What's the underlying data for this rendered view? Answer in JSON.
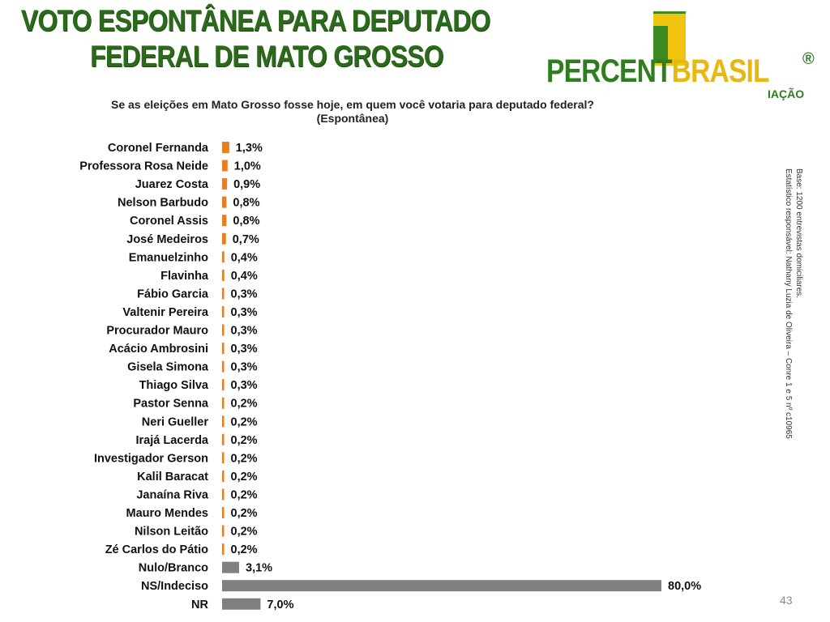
{
  "header": {
    "title_line1": "VOTO ESPONTÂNEA PARA DEPUTADO",
    "title_line2": "FEDERAL DE MATO GROSSO"
  },
  "logo": {
    "word_part1": "PERCENT",
    "word_part2": "BRASIL",
    "reg": "®",
    "sub": "IAÇÃO"
  },
  "question": {
    "line1": "Se as eleições em Mato Grosso fosse hoje, em quem você votaria para deputado federal?",
    "line2": "(Espontânea)"
  },
  "side_note": {
    "line1": "Base: 1200 entrevistas domiciliares.",
    "line2": "Estatístico responsável: Nathany Luzia de Oliveira – Conre 1 e 5 nº c10965"
  },
  "page_number": "43",
  "chart_data": {
    "type": "bar",
    "orientation": "horizontal",
    "categories": [
      "Coronel Fernanda",
      "Professora Rosa Neide",
      "Juarez Costa",
      "Nelson Barbudo",
      "Coronel Assis",
      "José Medeiros",
      "Emanuelzinho",
      "Flavinha",
      "Fábio Garcia",
      "Valtenir Pereira",
      "Procurador Mauro",
      "Acácio Ambrosini",
      "Gisela Simona",
      "Thiago Silva",
      "Pastor Senna",
      "Neri Gueller",
      "Irajá Lacerda",
      "Investigador Gerson",
      "Kalil Baracat",
      "Janaína Riva",
      "Mauro Mendes",
      "Nilson Leitão",
      "Zé Carlos do Pátio",
      "Nulo/Branco",
      "NS/Indeciso",
      "NR"
    ],
    "values": [
      1.3,
      1.0,
      0.9,
      0.8,
      0.8,
      0.7,
      0.4,
      0.4,
      0.3,
      0.3,
      0.3,
      0.3,
      0.3,
      0.3,
      0.2,
      0.2,
      0.2,
      0.2,
      0.2,
      0.2,
      0.2,
      0.2,
      0.2,
      3.1,
      80.0,
      7.0
    ],
    "value_labels": [
      "1,3%",
      "1,0%",
      "0,9%",
      "0,8%",
      "0,8%",
      "0,7%",
      "0,4%",
      "0,4%",
      "0,3%",
      "0,3%",
      "0,3%",
      "0,3%",
      "0,3%",
      "0,3%",
      "0,2%",
      "0,2%",
      "0,2%",
      "0,2%",
      "0,2%",
      "0,2%",
      "0,2%",
      "0,2%",
      "0,2%",
      "3,1%",
      "80,0%",
      "7,0%"
    ],
    "colors": {
      "candidate": "#e67e22",
      "other": "#808080"
    },
    "color_groups": [
      "candidate",
      "candidate",
      "candidate",
      "candidate",
      "candidate",
      "candidate",
      "candidate",
      "candidate",
      "candidate",
      "candidate",
      "candidate",
      "candidate",
      "candidate",
      "candidate",
      "candidate",
      "candidate",
      "candidate",
      "candidate",
      "candidate",
      "candidate",
      "candidate",
      "candidate",
      "candidate",
      "other",
      "other",
      "other"
    ],
    "xlim": [
      0,
      80
    ],
    "grid": false,
    "legend": "none"
  }
}
